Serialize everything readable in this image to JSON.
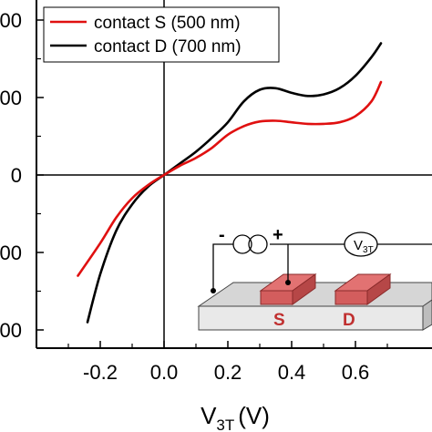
{
  "chart_data": {
    "type": "line",
    "title": "",
    "xlabel": "V",
    "xlabel_subscript": "3T",
    "xlabel_unit": "(V)",
    "ylabel": "",
    "xlim": [
      -0.33,
      0.7
    ],
    "ylim": [
      -215,
      215
    ],
    "x_ticks": [
      -0.2,
      0.0,
      0.2,
      0.4,
      0.6
    ],
    "x_tick_labels": [
      "-0.2",
      "0.0",
      "0.2",
      "0.4",
      "0.6"
    ],
    "y_ticks": [
      200,
      100,
      0,
      -100,
      -200
    ],
    "y_tick_labels": [
      "00",
      "00",
      "0",
      "00",
      "00"
    ],
    "grid": false,
    "legend_position": "top-left",
    "series": [
      {
        "name": "contact S (500 nm)",
        "color": "#e01010",
        "x": [
          -0.27,
          -0.2,
          -0.15,
          -0.1,
          -0.05,
          0.0,
          0.05,
          0.1,
          0.15,
          0.2,
          0.25,
          0.3,
          0.35,
          0.4,
          0.45,
          0.5,
          0.55,
          0.6,
          0.65,
          0.68
        ],
        "y": [
          -130,
          -88,
          -55,
          -30,
          -13,
          0,
          12,
          22,
          35,
          52,
          63,
          69,
          70,
          68,
          66,
          66,
          68,
          76,
          95,
          120
        ]
      },
      {
        "name": "contact D (700 nm)",
        "color": "#000000",
        "x": [
          -0.24,
          -0.2,
          -0.15,
          -0.1,
          -0.05,
          0.0,
          0.05,
          0.1,
          0.15,
          0.2,
          0.25,
          0.3,
          0.35,
          0.4,
          0.45,
          0.5,
          0.55,
          0.6,
          0.65,
          0.68
        ],
        "y": [
          -190,
          -128,
          -72,
          -38,
          -15,
          0,
          15,
          30,
          48,
          68,
          95,
          110,
          112,
          106,
          102,
          104,
          112,
          128,
          152,
          170
        ]
      }
    ]
  },
  "inset": {
    "minus_label": "-",
    "plus_label": "+",
    "voltmeter_label": "V",
    "voltmeter_subscript": "3T",
    "contact_s_label": "S",
    "contact_d_label": "D"
  }
}
